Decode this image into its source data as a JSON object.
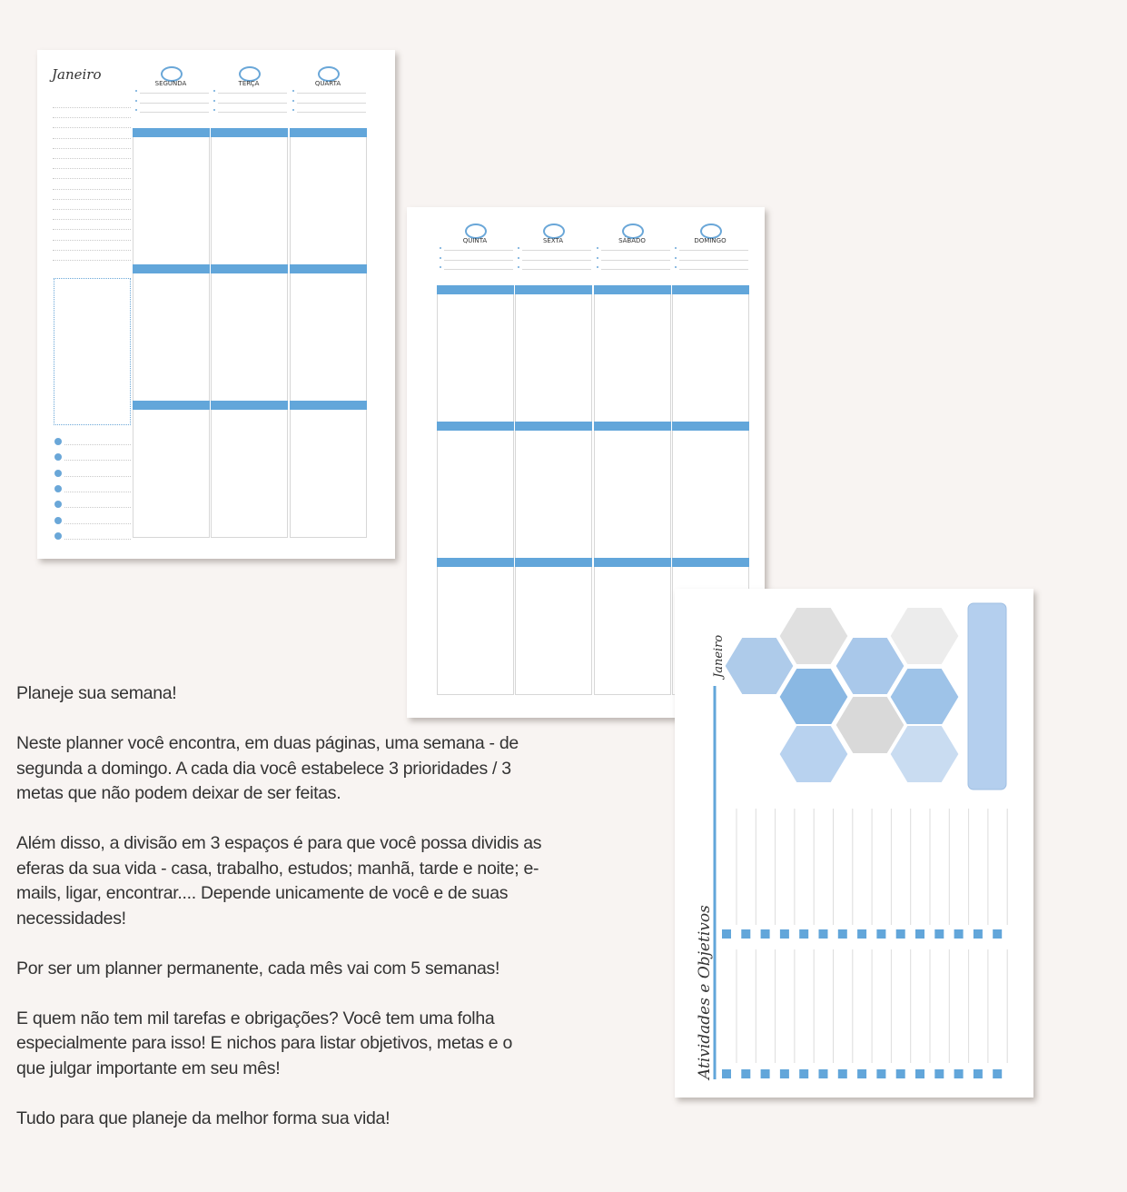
{
  "page1": {
    "month": "Janeiro",
    "days": [
      "SEGUNDA",
      "TERÇA",
      "QUARTA"
    ]
  },
  "page2": {
    "days": [
      "QUINTA",
      "SEXTA",
      "SÁBADO",
      "DOMINGO"
    ]
  },
  "page3": {
    "month": "Janeiro",
    "section_title": "Atividades e Objetivos",
    "hexagon_colors": [
      "#aecbea",
      "#e0e0e0",
      "#a9c8ea",
      "#ececec",
      "#8ab8e3",
      "#9ec3e8",
      "#d9d9d9",
      "#b8d2ef",
      "#c9dcf1"
    ],
    "accent": "#62a6da"
  },
  "description": {
    "heading": "Planeje sua semana!",
    "paragraphs": [
      "Neste planner você encontra, em duas páginas, uma semana - de segunda a domingo. A cada dia você estabelece 3 prioridades / 3 metas que não podem deixar de ser feitas.",
      "Além disso, a divisão em 3 espaços é para que você possa dividis as eferas da sua vida - casa, trabalho, estudos; manhã, tarde e noite; e-mails, ligar, encontrar.... Depende unicamente de você e de suas necessidades!",
      "Por ser um planner permanente, cada mês vai com 5 semanas!",
      "E quem não tem mil tarefas e obrigações? Você tem uma folha especialmente para isso! E nichos para listar objetivos, metas e o que julgar importante em seu mês!",
      "Tudo para que planeje da melhor forma sua vida!"
    ]
  }
}
